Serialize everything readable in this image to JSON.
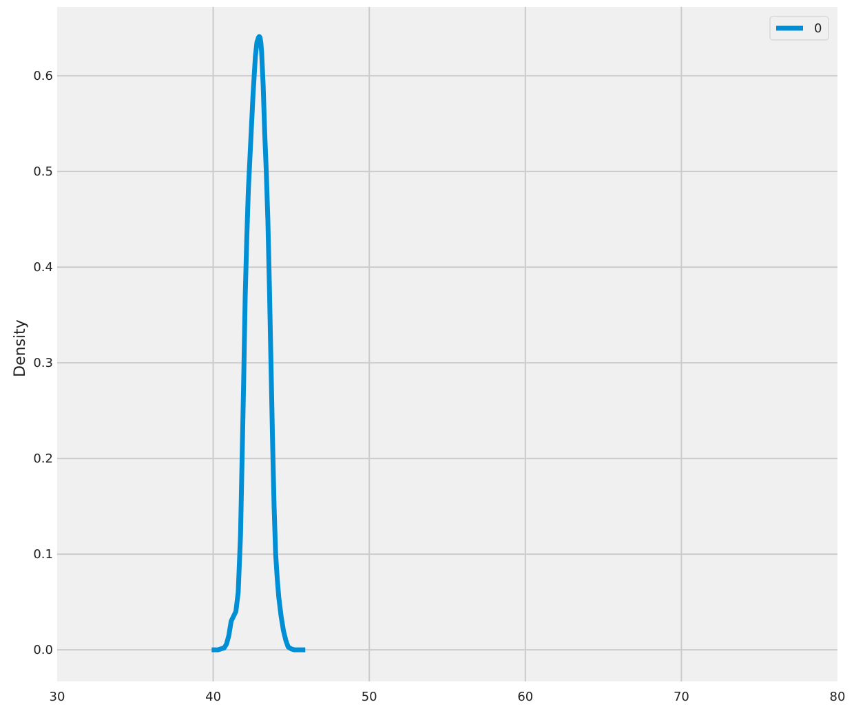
{
  "chart_data": {
    "type": "line",
    "title": "",
    "xlabel": "",
    "ylabel": "Density",
    "xlim": [
      30,
      80
    ],
    "ylim": [
      -0.033,
      0.672
    ],
    "xticks": [
      30,
      40,
      50,
      60,
      70,
      80
    ],
    "yticks": [
      0.0,
      0.1,
      0.2,
      0.3,
      0.4,
      0.5,
      0.6
    ],
    "xtick_labels": [
      "30",
      "40",
      "50",
      "60",
      "70",
      "80"
    ],
    "ytick_labels": [
      "0.0",
      "0.1",
      "0.2",
      "0.3",
      "0.4",
      "0.5",
      "0.6"
    ],
    "grid": true,
    "legend_position": "top-right",
    "colors": {
      "background": "#f0f0f0",
      "grid": "#cbcbcb",
      "series": "#008fd5"
    },
    "series": [
      {
        "name": "0",
        "color": "#008fd5",
        "x": [
          39.9,
          40.3,
          40.7,
          40.85,
          41.0,
          41.15,
          41.3,
          41.45,
          41.6,
          41.75,
          41.85,
          41.95,
          42.05,
          42.15,
          42.25,
          42.4,
          42.55,
          42.7,
          42.8,
          42.9,
          42.95,
          43.0,
          43.05,
          43.1,
          43.2,
          43.3,
          43.4,
          43.5,
          43.6,
          43.7,
          43.8,
          43.9,
          44.0,
          44.1,
          44.2,
          44.35,
          44.5,
          44.65,
          44.8,
          45.0,
          45.2,
          45.5,
          45.9
        ],
        "y": [
          0.0,
          0.0,
          0.002,
          0.006,
          0.015,
          0.03,
          0.035,
          0.04,
          0.06,
          0.12,
          0.2,
          0.28,
          0.37,
          0.43,
          0.48,
          0.53,
          0.58,
          0.62,
          0.635,
          0.64,
          0.641,
          0.64,
          0.635,
          0.625,
          0.59,
          0.54,
          0.5,
          0.45,
          0.38,
          0.3,
          0.22,
          0.15,
          0.1,
          0.075,
          0.055,
          0.035,
          0.02,
          0.01,
          0.003,
          0.001,
          0.0,
          0.0,
          0.0
        ]
      }
    ]
  }
}
